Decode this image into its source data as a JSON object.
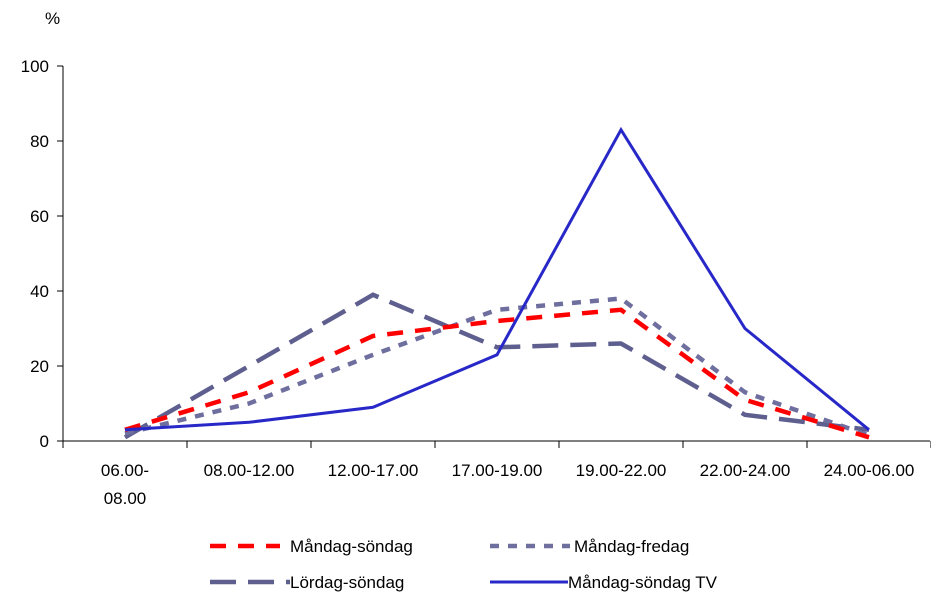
{
  "chart_data": {
    "type": "line",
    "title": "",
    "ylabel": "%",
    "xlabel": "",
    "ylim": [
      0,
      100
    ],
    "yticks": [
      0,
      20,
      40,
      60,
      80,
      100
    ],
    "grid": false,
    "legend_position": "bottom",
    "categories": [
      [
        "06.00-",
        "08.00"
      ],
      [
        "08.00-12.00"
      ],
      [
        "12.00-17.00"
      ],
      [
        "17.00-19.00"
      ],
      [
        "19.00-22.00"
      ],
      [
        "22.00-24.00"
      ],
      [
        "24.00-06.00"
      ]
    ],
    "series": [
      {
        "name": "Måndag-söndag",
        "values": [
          3,
          13,
          28,
          32,
          35,
          11,
          1
        ],
        "color": "#ff0000",
        "dash": "red-dash"
      },
      {
        "name": "Måndag-fredag",
        "values": [
          2,
          10,
          23,
          35,
          38,
          13,
          1.5
        ],
        "color": "#6f6f9f",
        "dash": "short-dash"
      },
      {
        "name": "Lördag-söndag",
        "values": [
          1,
          20,
          39,
          25,
          26,
          7,
          3
        ],
        "color": "#5f5f8f",
        "dash": "long-dash"
      },
      {
        "name": "Måndag-söndag TV",
        "values": [
          3,
          5,
          9,
          23,
          83,
          30,
          3
        ],
        "color": "#2828c8",
        "dash": "solid"
      }
    ]
  }
}
